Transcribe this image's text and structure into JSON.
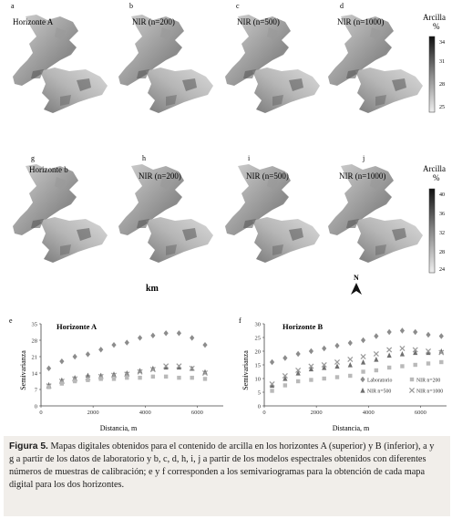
{
  "maps_row1": [
    {
      "letter": "a",
      "label": "Horizonte A"
    },
    {
      "letter": "b",
      "label": "NIR (n=200)"
    },
    {
      "letter": "c",
      "label": "NIR (n=500)"
    },
    {
      "letter": "d",
      "label": "NIR (n=1000)"
    }
  ],
  "maps_row2": [
    {
      "letter": "g",
      "label": "Horizonte b"
    },
    {
      "letter": "h",
      "label": "NIR (n=200)"
    },
    {
      "letter": "i",
      "label": "NIR (n=500)"
    },
    {
      "letter": "j",
      "label": "NIR (n=1000)"
    }
  ],
  "legend_title": "Arcilla",
  "legend_unit": "%",
  "legend1_ticks": [
    "34",
    "31",
    "28",
    "25"
  ],
  "legend2_ticks": [
    "40",
    "36",
    "32",
    "28",
    "24"
  ],
  "scale_label": "km",
  "north_label": "N",
  "chart_data": [
    {
      "panel": "e",
      "type": "scatter",
      "title": "Horizonte A",
      "xlabel": "Distancia, m",
      "ylabel": "Semivarianza",
      "xlim": [
        0,
        7000
      ],
      "ylim": [
        0,
        35
      ],
      "xticks": [
        0,
        2000,
        4000,
        6000
      ],
      "yticks": [
        0,
        7,
        14,
        21,
        28,
        35
      ],
      "series": [
        {
          "marker": "diamond",
          "color": "#8c8c8c",
          "x": [
            300,
            800,
            1300,
            1800,
            2300,
            2800,
            3300,
            3800,
            4300,
            4800,
            5300,
            5800,
            6300
          ],
          "y": [
            16,
            19,
            21,
            22,
            24,
            26,
            27,
            29,
            30,
            31,
            31,
            29,
            26
          ]
        },
        {
          "marker": "triangle",
          "color": "#6f6f6f",
          "x": [
            300,
            800,
            1300,
            1800,
            2300,
            2800,
            3300,
            3800,
            4300,
            4800,
            5300,
            5800,
            6300
          ],
          "y": [
            9,
            11,
            12,
            13,
            13,
            13.5,
            14,
            15,
            16,
            16.5,
            16.5,
            16,
            14.5
          ]
        },
        {
          "marker": "cross",
          "color": "#9a9a9a",
          "x": [
            300,
            800,
            1300,
            1800,
            2300,
            2800,
            3300,
            3800,
            4300,
            4800,
            5300,
            5800,
            6300
          ],
          "y": [
            8.5,
            10.5,
            11.5,
            12,
            12.5,
            13,
            13.5,
            14.5,
            15.5,
            17,
            17,
            16,
            14
          ]
        },
        {
          "marker": "square",
          "color": "#b9b9b9",
          "x": [
            300,
            800,
            1300,
            1800,
            2300,
            2800,
            3300,
            3800,
            4300,
            4800,
            5300,
            5800,
            6300
          ],
          "y": [
            8,
            9.5,
            10.5,
            11,
            11.5,
            11.5,
            12,
            12,
            12.5,
            12.5,
            12,
            12,
            11.5
          ]
        }
      ]
    },
    {
      "panel": "f",
      "type": "scatter",
      "title": "Horizonte B",
      "xlabel": "Distancia, m",
      "ylabel": "Semivarianza",
      "xlim": [
        0,
        7000
      ],
      "ylim": [
        0,
        30
      ],
      "xticks": [
        0,
        2000,
        4000,
        6000
      ],
      "yticks": [
        0,
        5,
        10,
        15,
        20,
        25,
        30
      ],
      "legend": [
        "Laboratorio",
        "NIR n=200",
        "NIR n=500",
        "NIR n=1000"
      ],
      "series": [
        {
          "name": "Laboratorio",
          "marker": "diamond",
          "color": "#8c8c8c",
          "x": [
            300,
            800,
            1300,
            1800,
            2300,
            2800,
            3300,
            3800,
            4300,
            4800,
            5300,
            5800,
            6300,
            6800
          ],
          "y": [
            16,
            17.5,
            19,
            20,
            21,
            22,
            23,
            24,
            25.5,
            27,
            27.5,
            27,
            26,
            25.5
          ]
        },
        {
          "name": "NIR n=200",
          "marker": "square",
          "color": "#b9b9b9",
          "x": [
            300,
            800,
            1300,
            1800,
            2300,
            2800,
            3300,
            3800,
            4300,
            4800,
            5300,
            5800,
            6300,
            6800
          ],
          "y": [
            5.5,
            7.5,
            9,
            9.5,
            10,
            10.5,
            11,
            12.5,
            13,
            14,
            14.5,
            15,
            15.5,
            16
          ]
        },
        {
          "name": "NIR n=500",
          "marker": "triangle",
          "color": "#6f6f6f",
          "x": [
            300,
            800,
            1300,
            1800,
            2300,
            2800,
            3300,
            3800,
            4300,
            4800,
            5300,
            5800,
            6300,
            6800
          ],
          "y": [
            7.5,
            10,
            12,
            13.5,
            14,
            14.5,
            15,
            16,
            17,
            18.5,
            19,
            19.5,
            19.5,
            20
          ]
        },
        {
          "name": "NIR n=1000",
          "marker": "cross",
          "color": "#9a9a9a",
          "x": [
            300,
            800,
            1300,
            1800,
            2300,
            2800,
            3300,
            3800,
            4300,
            4800,
            5300,
            5800,
            6300,
            6800
          ],
          "y": [
            8,
            11,
            13,
            14.5,
            15,
            16,
            17,
            18,
            19,
            20.5,
            21,
            20.5,
            20,
            19.5
          ]
        }
      ]
    }
  ],
  "caption": {
    "label": "Figura 5.",
    "line1": "Mapas digitales obtenidos para el contenido de arcilla en los horizontes A (superior) y B (inferior), a y",
    "line2": "g a partir de los datos de laboratorio y b, c, d, h, i, j a partir de los modelos espectrales obtenidos con diferentes",
    "line3": "números de muestras de calibración; e y f corresponden a los semivariogramas para la obtención de cada mapa",
    "line4": "digital para los dos horizontes."
  }
}
